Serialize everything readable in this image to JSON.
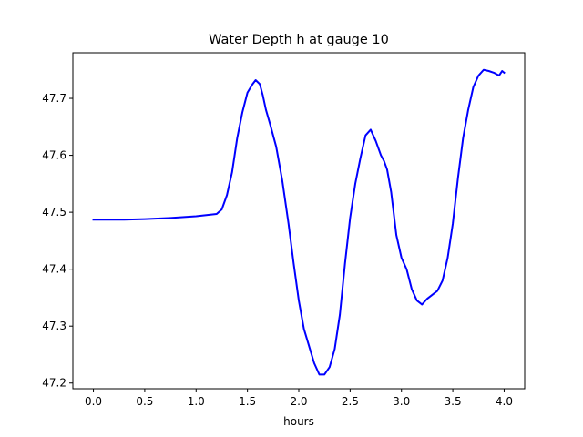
{
  "chart_data": {
    "type": "line",
    "title": "Water Depth h at gauge 10",
    "xlabel": "hours",
    "ylabel": "",
    "xlim": [
      -0.2,
      4.2
    ],
    "ylim": [
      47.19,
      47.78
    ],
    "xticks": [
      0.0,
      0.5,
      1.0,
      1.5,
      2.0,
      2.5,
      3.0,
      3.5,
      4.0
    ],
    "xtick_labels": [
      "0.0",
      "0.5",
      "1.0",
      "1.5",
      "2.0",
      "2.5",
      "3.0",
      "3.5",
      "4.0"
    ],
    "yticks": [
      47.2,
      47.3,
      47.4,
      47.5,
      47.6,
      47.7
    ],
    "ytick_labels": [
      "47.2",
      "47.3",
      "47.4",
      "47.5",
      "47.6",
      "47.7"
    ],
    "grid": false,
    "series": [
      {
        "color": "#0000ff",
        "x": [
          0.0,
          0.3,
          0.5,
          0.75,
          1.0,
          1.1,
          1.2,
          1.25,
          1.3,
          1.35,
          1.4,
          1.45,
          1.5,
          1.55,
          1.58,
          1.62,
          1.65,
          1.68,
          1.72,
          1.78,
          1.84,
          1.9,
          1.95,
          2.0,
          2.05,
          2.1,
          2.15,
          2.2,
          2.25,
          2.3,
          2.35,
          2.4,
          2.45,
          2.5,
          2.55,
          2.6,
          2.65,
          2.7,
          2.75,
          2.8,
          2.83,
          2.86,
          2.9,
          2.95,
          3.0,
          3.05,
          3.1,
          3.15,
          3.2,
          3.25,
          3.3,
          3.35,
          3.4,
          3.45,
          3.5,
          3.55,
          3.6,
          3.65,
          3.7,
          3.75,
          3.8,
          3.85,
          3.9,
          3.95,
          3.98,
          4.0
        ],
        "y": [
          47.487,
          47.487,
          47.488,
          47.49,
          47.493,
          47.495,
          47.497,
          47.505,
          47.53,
          47.57,
          47.63,
          47.675,
          47.71,
          47.725,
          47.732,
          47.725,
          47.705,
          47.68,
          47.655,
          47.615,
          47.555,
          47.48,
          47.41,
          47.345,
          47.295,
          47.265,
          47.235,
          47.215,
          47.215,
          47.228,
          47.26,
          47.32,
          47.41,
          47.49,
          47.55,
          47.595,
          47.635,
          47.645,
          47.625,
          47.6,
          47.59,
          47.575,
          47.535,
          47.46,
          47.42,
          47.4,
          47.365,
          47.345,
          47.338,
          47.348,
          47.355,
          47.362,
          47.38,
          47.42,
          47.48,
          47.56,
          47.63,
          47.68,
          47.72,
          47.74,
          47.75,
          47.748,
          47.745,
          47.74,
          47.748,
          47.745
        ]
      }
    ]
  }
}
